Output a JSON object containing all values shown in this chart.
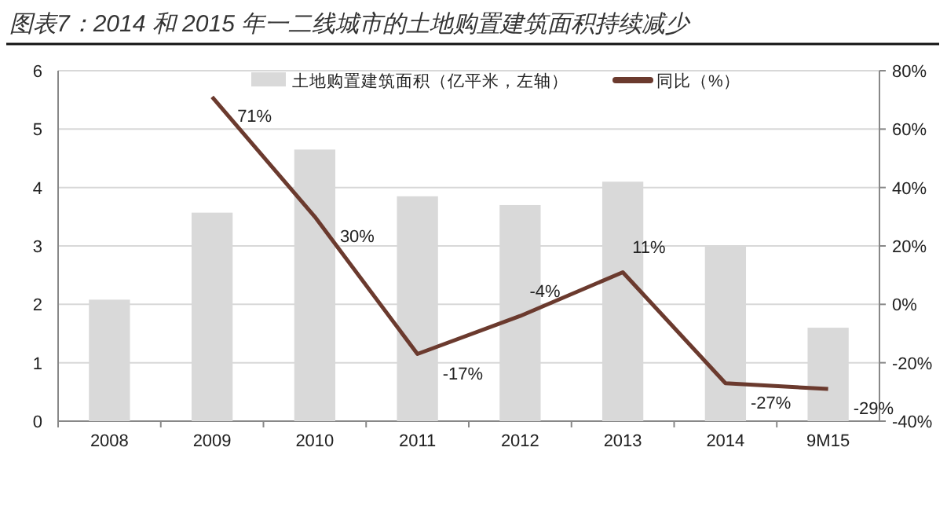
{
  "chart_data": {
    "type": "bar",
    "title": "图表7：2014 和 2015 年一二线城市的土地购置建筑面积持续减少",
    "categories": [
      "2008",
      "2009",
      "2010",
      "2011",
      "2012",
      "2013",
      "2014",
      "9M15"
    ],
    "series": [
      {
        "name": "土地购置建筑面积（亿平米，左轴）",
        "color": "#d9d9d9",
        "values": [
          2.08,
          3.57,
          4.65,
          3.85,
          3.7,
          4.1,
          3.0,
          1.6
        ]
      },
      {
        "name": "同比（%）",
        "type": "line",
        "axis": "y2",
        "color": "#6b3a2e",
        "values": [
          null,
          71,
          30,
          -17,
          -4,
          11,
          -27,
          -29
        ],
        "value_labels": [
          null,
          "71%",
          "30%",
          "-17%",
          "-4%",
          "11%",
          "-27%",
          "-29%"
        ]
      }
    ],
    "ylim": [
      0,
      6
    ],
    "yticks": [
      0,
      1,
      2,
      3,
      4,
      5,
      6
    ],
    "y2lim": [
      -40,
      80
    ],
    "y2ticks": [
      {
        "value": -40,
        "label": "-40%"
      },
      {
        "value": -20,
        "label": "-20%"
      },
      {
        "value": 0,
        "label": "0%"
      },
      {
        "value": 20,
        "label": "20%"
      },
      {
        "value": 40,
        "label": "40%"
      },
      {
        "value": 60,
        "label": "60%"
      },
      {
        "value": 80,
        "label": "80%"
      }
    ],
    "grid": "y",
    "legend": "top"
  }
}
